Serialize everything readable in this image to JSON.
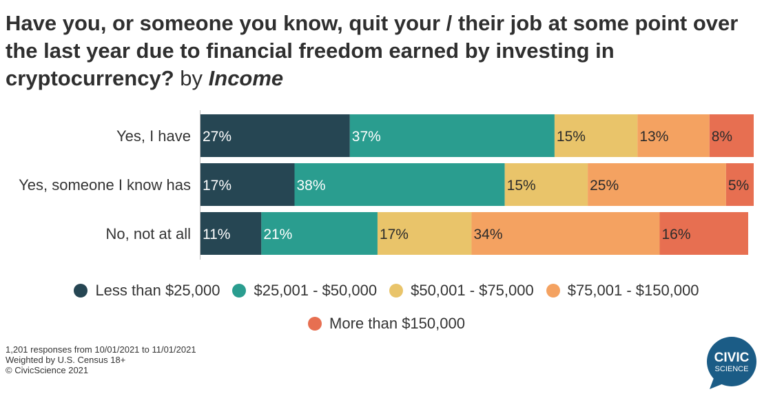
{
  "title": {
    "main": "Have you, or someone you know, quit your / their job at some point over the last year due to financial freedom earned by investing in cryptocurrency?",
    "by": "by",
    "dimension": "Income"
  },
  "colors": {
    "Less than $25,000": "#264653",
    "$25,001 - $50,000": "#2a9d8f",
    "$50,001 - $75,000": "#e9c46a",
    "$75,001 - $150,000": "#f4a261",
    "More than $150,000": "#e76f51"
  },
  "chart_data": {
    "type": "bar",
    "orientation": "horizontal",
    "stacked": true,
    "categories": [
      "Yes, I have",
      "Yes, someone I know has",
      "No, not at all"
    ],
    "series": [
      {
        "name": "Less than $25,000",
        "values": [
          27,
          17,
          11
        ],
        "labels": [
          "27%",
          "17%",
          "11%"
        ]
      },
      {
        "name": "$25,001 - $50,000",
        "values": [
          37,
          38,
          21
        ],
        "labels": [
          "37%",
          "38%",
          "21%"
        ]
      },
      {
        "name": "$50,001 - $75,000",
        "values": [
          15,
          15,
          17
        ],
        "labels": [
          "15%",
          "15%",
          "17%"
        ]
      },
      {
        "name": "$75,001 - $150,000",
        "values": [
          13,
          25,
          34
        ],
        "labels": [
          "13%",
          "25%",
          "34%"
        ]
      },
      {
        "name": "More than $150,000",
        "values": [
          8,
          5,
          16
        ],
        "labels": [
          "8%",
          "5%",
          "16%"
        ]
      }
    ],
    "xlim": [
      0,
      100
    ],
    "legend_position": "bottom"
  },
  "legend_rows": [
    [
      "Less than $25,000",
      "$25,001 - $50,000",
      "$50,001 - $75,000",
      "$75,001 - $150,000"
    ],
    [
      "More than $150,000"
    ]
  ],
  "footer": {
    "line1": "1,201 responses from 10/01/2021 to 11/01/2021",
    "line2": "Weighted by U.S. Census 18+",
    "line3": "© CivicScience 2021"
  },
  "logo": {
    "line1": "CIVIC",
    "line2": "SCIENCE",
    "color": "#1b5c86"
  }
}
